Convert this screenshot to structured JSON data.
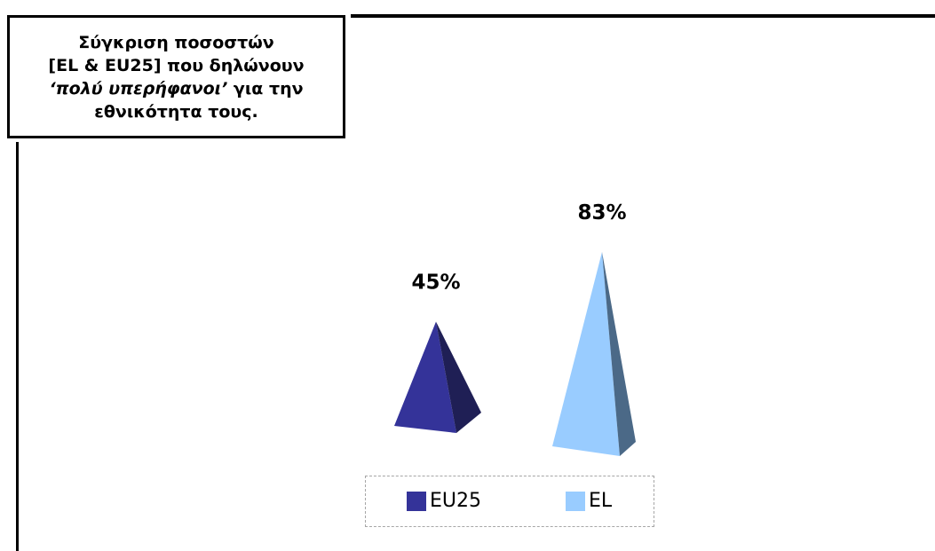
{
  "title": {
    "line1": "Σύγκριση ποσοστών",
    "line2": "[EL & EU25] που δηλώνουν",
    "line3_italic": "‘πολύ υπερήφανοι’",
    "line3_rest": " για την",
    "line4": "εθνικότητα τους."
  },
  "chart_data": {
    "type": "bar",
    "shape": "pyramid-3d",
    "categories": [
      "EU25",
      "EL"
    ],
    "series": [
      {
        "values": [
          45,
          83
        ],
        "colors": [
          "#343399",
          "#99ccff"
        ],
        "shade_colors": [
          "#1f1f55",
          "#4b6987"
        ]
      }
    ],
    "data_labels": [
      "45%",
      "83%"
    ],
    "unit": "%",
    "ylim": [
      0,
      100
    ],
    "grid": false,
    "legend": {
      "position": "bottom",
      "entries": [
        {
          "label": "EU25",
          "color": "#343399"
        },
        {
          "label": "EL",
          "color": "#99ccff"
        }
      ]
    }
  }
}
